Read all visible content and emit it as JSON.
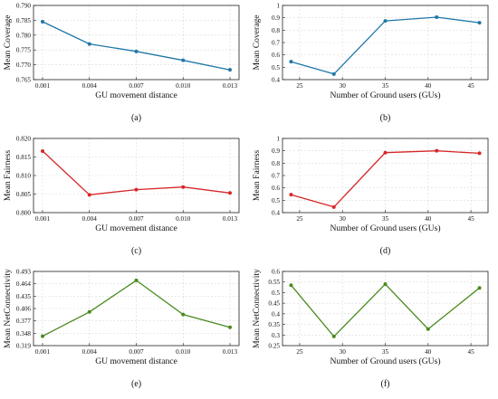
{
  "chart_data": [
    {
      "id": "a",
      "type": "line",
      "caption": "(a)",
      "xlabel": "GU movement distance",
      "ylabel": "Mean Coverage",
      "x_type": "categorical",
      "categories": [
        "0.001",
        "0.004",
        "0.007",
        "0.010",
        "0.013"
      ],
      "x_ticks": [
        "0.001",
        "0.004",
        "0.007",
        "0.010",
        "0.013"
      ],
      "y_ticks": [
        "0.765",
        "0.770",
        "0.775",
        "0.780",
        "0.785",
        "0.790"
      ],
      "ylim": [
        0.765,
        0.79
      ],
      "color": "#1f77a8",
      "series": [
        {
          "values": [
            0.7845,
            0.777,
            0.7745,
            0.7715,
            0.7683
          ]
        }
      ],
      "grid": true
    },
    {
      "id": "b",
      "type": "line",
      "caption": "(b)",
      "xlabel": "Number of Ground users (GUs)",
      "ylabel": "Mean Coverage",
      "x_type": "numeric",
      "x": [
        24,
        29,
        35,
        41,
        46
      ],
      "xlim": [
        23,
        47
      ],
      "x_ticks": [
        "25",
        "30",
        "35",
        "40",
        "45"
      ],
      "y_ticks": [
        "0.4",
        "0.5",
        "0.6",
        "0.7",
        "0.8",
        "0.9",
        "1"
      ],
      "ylim": [
        0.4,
        1.0
      ],
      "color": "#1f77a8",
      "series": [
        {
          "values": [
            0.545,
            0.445,
            0.875,
            0.905,
            0.86
          ]
        }
      ],
      "grid": true
    },
    {
      "id": "c",
      "type": "line",
      "caption": "(c)",
      "xlabel": "GU movement distance",
      "ylabel": "Mean Fairness",
      "x_type": "categorical",
      "categories": [
        "0.001",
        "0.004",
        "0.007",
        "0.010",
        "0.013"
      ],
      "x_ticks": [
        "0.001",
        "0.004",
        "0.007",
        "0.010",
        "0.013"
      ],
      "y_ticks": [
        "0.800",
        "0.805",
        "0.810",
        "0.815",
        "0.820"
      ],
      "ylim": [
        0.8,
        0.82
      ],
      "color": "#d62728",
      "series": [
        {
          "values": [
            0.8166,
            0.8048,
            0.8062,
            0.8069,
            0.8053
          ]
        }
      ],
      "grid": true
    },
    {
      "id": "d",
      "type": "line",
      "caption": "(d)",
      "xlabel": "Number of Ground users (GUs)",
      "ylabel": "Mean Fairness",
      "x_type": "numeric",
      "x": [
        24,
        29,
        35,
        41,
        46
      ],
      "xlim": [
        23,
        47
      ],
      "x_ticks": [
        "25",
        "30",
        "35",
        "40",
        "45"
      ],
      "y_ticks": [
        "0.4",
        "0.5",
        "0.6",
        "0.7",
        "0.8",
        "0.9",
        "1"
      ],
      "ylim": [
        0.4,
        1.0
      ],
      "color": "#d62728",
      "series": [
        {
          "values": [
            0.545,
            0.445,
            0.885,
            0.9,
            0.88
          ]
        }
      ],
      "grid": true
    },
    {
      "id": "e",
      "type": "line",
      "caption": "(e)",
      "xlabel": "GU movement distance",
      "ylabel": "Mean NetConnectivity",
      "x_type": "categorical",
      "categories": [
        "0.001",
        "0.004",
        "0.007",
        "0.010",
        "0.013"
      ],
      "x_ticks": [
        "0.001",
        "0.004",
        "0.007",
        "0.010",
        "0.013"
      ],
      "y_ticks": [
        "0.319",
        "0.348",
        "0.377",
        "0.406",
        "0.435",
        "0.464",
        "0.493"
      ],
      "ylim": [
        0.319,
        0.493
      ],
      "color": "#4a8a1f",
      "series": [
        {
          "values": [
            0.341,
            0.398,
            0.472,
            0.392,
            0.362
          ]
        }
      ],
      "grid": true
    },
    {
      "id": "f",
      "type": "line",
      "caption": "(f)",
      "xlabel": "Number of Ground users (GUs)",
      "ylabel": "Mean NetConnectivity",
      "x_type": "numeric",
      "x": [
        24,
        29,
        35,
        40,
        46
      ],
      "xlim": [
        23,
        47
      ],
      "x_ticks": [
        "25",
        "30",
        "35",
        "40",
        "45"
      ],
      "y_ticks": [
        "0.25",
        "0.3",
        "0.35",
        "0.4",
        "0.45",
        "0.5",
        "0.55",
        "0.6"
      ],
      "ylim": [
        0.25,
        0.6
      ],
      "color": "#4a8a1f",
      "series": [
        {
          "values": [
            0.535,
            0.293,
            0.54,
            0.328,
            0.522
          ]
        }
      ],
      "grid": true
    }
  ]
}
